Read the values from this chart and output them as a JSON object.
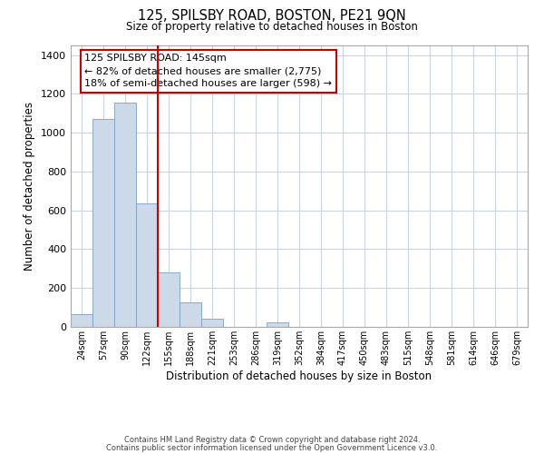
{
  "title": "125, SPILSBY ROAD, BOSTON, PE21 9QN",
  "subtitle": "Size of property relative to detached houses in Boston",
  "xlabel": "Distribution of detached houses by size in Boston",
  "ylabel": "Number of detached properties",
  "bar_color": "#ccd9e8",
  "bar_edge_color": "#7aa0c0",
  "vline_color": "#cc0000",
  "annotation_text": "125 SPILSBY ROAD: 145sqm\n← 82% of detached houses are smaller (2,775)\n18% of semi-detached houses are larger (598) →",
  "annotation_box_color": "#ffffff",
  "annotation_box_edge": "#cc0000",
  "categories": [
    "24sqm",
    "57sqm",
    "90sqm",
    "122sqm",
    "155sqm",
    "188sqm",
    "221sqm",
    "253sqm",
    "286sqm",
    "319sqm",
    "352sqm",
    "384sqm",
    "417sqm",
    "450sqm",
    "483sqm",
    "515sqm",
    "548sqm",
    "581sqm",
    "614sqm",
    "646sqm",
    "679sqm"
  ],
  "values": [
    65,
    1070,
    1155,
    635,
    280,
    125,
    40,
    0,
    0,
    22,
    0,
    0,
    0,
    0,
    0,
    0,
    0,
    0,
    0,
    0,
    0
  ],
  "ylim": [
    0,
    1450
  ],
  "yticks": [
    0,
    200,
    400,
    600,
    800,
    1000,
    1200,
    1400
  ],
  "footer_line1": "Contains HM Land Registry data © Crown copyright and database right 2024.",
  "footer_line2": "Contains public sector information licensed under the Open Government Licence v3.0.",
  "bg_color": "#ffffff",
  "grid_color": "#c8d4df"
}
